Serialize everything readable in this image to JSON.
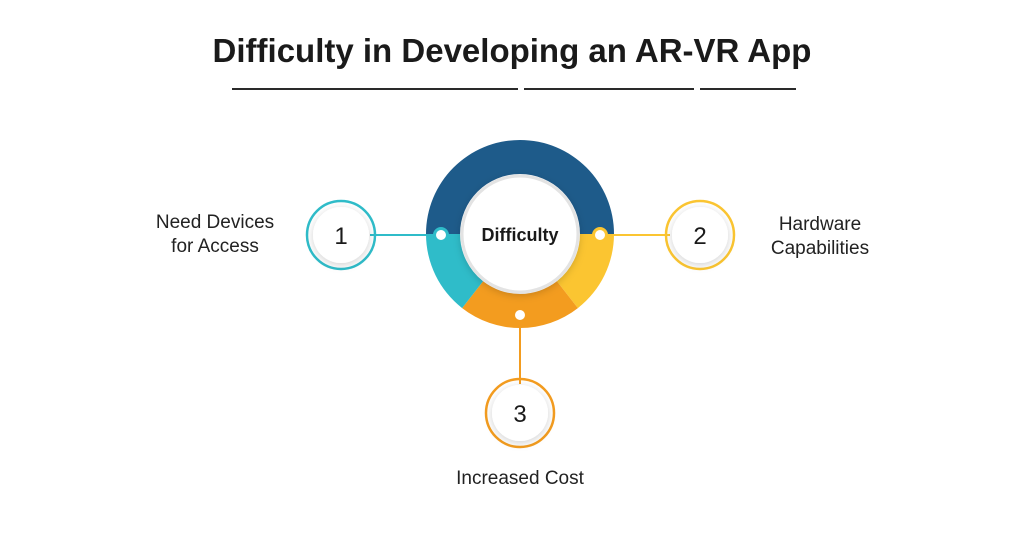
{
  "title": "Difficulty in Developing an AR-VR App",
  "center_label": "Difficulty",
  "steps": [
    {
      "number": "1",
      "label_line1": "Need Devices",
      "label_line2": "for Access",
      "color": "#2fbcc9"
    },
    {
      "number": "2",
      "label_line1": "Hardware",
      "label_line2": "Capabilities",
      "color": "#fbc531"
    },
    {
      "number": "3",
      "label_line1": "Increased Cost",
      "label_line2": "",
      "color": "#f39c1f"
    }
  ],
  "ring_colors": {
    "dark_blue": "#1e5b8a",
    "teal": "#2fbcc9",
    "yellow": "#fbc531",
    "orange": "#f39c1f"
  }
}
